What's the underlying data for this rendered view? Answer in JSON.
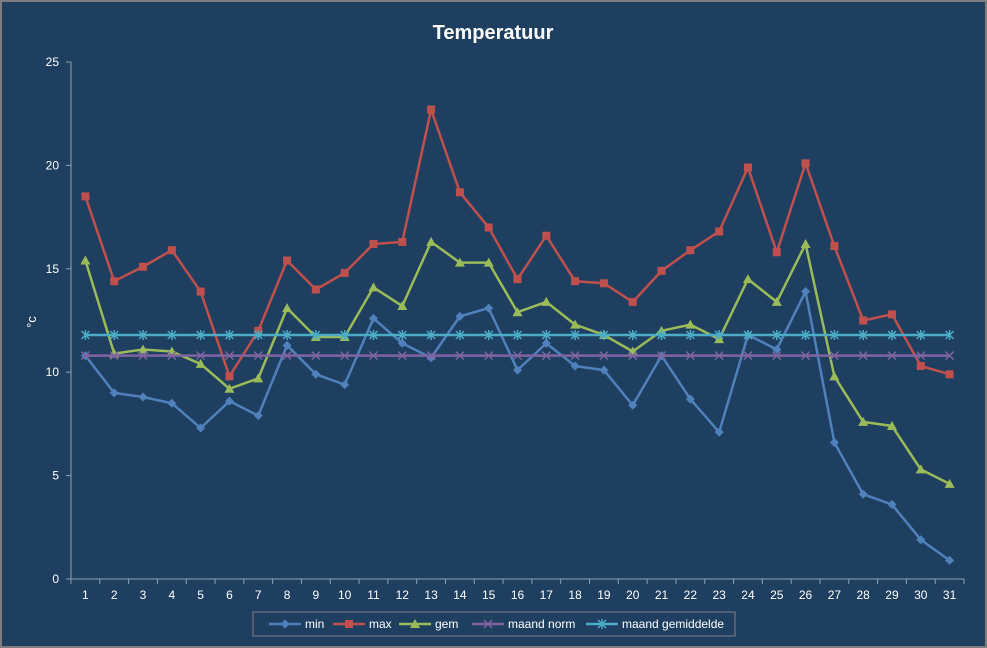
{
  "chart_data": {
    "type": "line",
    "title": "Temperatuur",
    "xlabel": "",
    "ylabel": "°c",
    "ylim": [
      0,
      25
    ],
    "yticks": [
      0,
      5,
      10,
      15,
      20,
      25
    ],
    "categories": [
      "1",
      "2",
      "3",
      "4",
      "5",
      "6",
      "7",
      "8",
      "9",
      "10",
      "11",
      "12",
      "13",
      "14",
      "15",
      "16",
      "17",
      "18",
      "19",
      "20",
      "21",
      "22",
      "23",
      "24",
      "25",
      "26",
      "27",
      "28",
      "29",
      "30",
      "31"
    ],
    "grid": false,
    "legend_position": "bottom",
    "series": [
      {
        "name": "min",
        "color": "#4f81bd",
        "marker": "diamond",
        "values": [
          10.8,
          9.0,
          8.8,
          8.5,
          7.3,
          8.6,
          7.9,
          11.3,
          9.9,
          9.4,
          12.6,
          11.4,
          10.7,
          12.7,
          13.1,
          10.1,
          11.4,
          10.3,
          10.1,
          8.4,
          10.8,
          8.7,
          7.1,
          11.8,
          11.1,
          13.9,
          6.6,
          4.1,
          3.6,
          1.9,
          0.9
        ]
      },
      {
        "name": "max",
        "color": "#c0504d",
        "marker": "square",
        "values": [
          18.5,
          14.4,
          15.1,
          15.9,
          13.9,
          9.8,
          12.0,
          15.4,
          14.0,
          14.8,
          16.2,
          16.3,
          22.7,
          18.7,
          17.0,
          14.5,
          16.6,
          14.4,
          14.3,
          13.4,
          14.9,
          15.9,
          16.8,
          19.9,
          15.8,
          20.1,
          16.1,
          12.5,
          12.8,
          10.3,
          9.9
        ]
      },
      {
        "name": "gem",
        "color": "#9bbb59",
        "marker": "triangle",
        "values": [
          15.4,
          10.9,
          11.1,
          11.0,
          10.4,
          9.2,
          9.7,
          13.1,
          11.7,
          11.7,
          14.1,
          13.2,
          16.3,
          15.3,
          15.3,
          12.9,
          13.4,
          12.3,
          11.8,
          11.0,
          12.0,
          12.3,
          11.6,
          14.5,
          13.4,
          16.2,
          9.8,
          7.6,
          7.4,
          5.3,
          4.6
        ]
      },
      {
        "name": "maand norm",
        "color": "#8064a2",
        "marker": "x",
        "values": [
          10.8,
          10.8,
          10.8,
          10.8,
          10.8,
          10.8,
          10.8,
          10.8,
          10.8,
          10.8,
          10.8,
          10.8,
          10.8,
          10.8,
          10.8,
          10.8,
          10.8,
          10.8,
          10.8,
          10.8,
          10.8,
          10.8,
          10.8,
          10.8,
          10.8,
          10.8,
          10.8,
          10.8,
          10.8,
          10.8,
          10.8
        ]
      },
      {
        "name": "maand gemiddelde",
        "color": "#4bacc6",
        "marker": "star",
        "values": [
          11.8,
          11.8,
          11.8,
          11.8,
          11.8,
          11.8,
          11.8,
          11.8,
          11.8,
          11.8,
          11.8,
          11.8,
          11.8,
          11.8,
          11.8,
          11.8,
          11.8,
          11.8,
          11.8,
          11.8,
          11.8,
          11.8,
          11.8,
          11.8,
          11.8,
          11.8,
          11.8,
          11.8,
          11.8,
          11.8,
          11.8
        ]
      }
    ]
  }
}
